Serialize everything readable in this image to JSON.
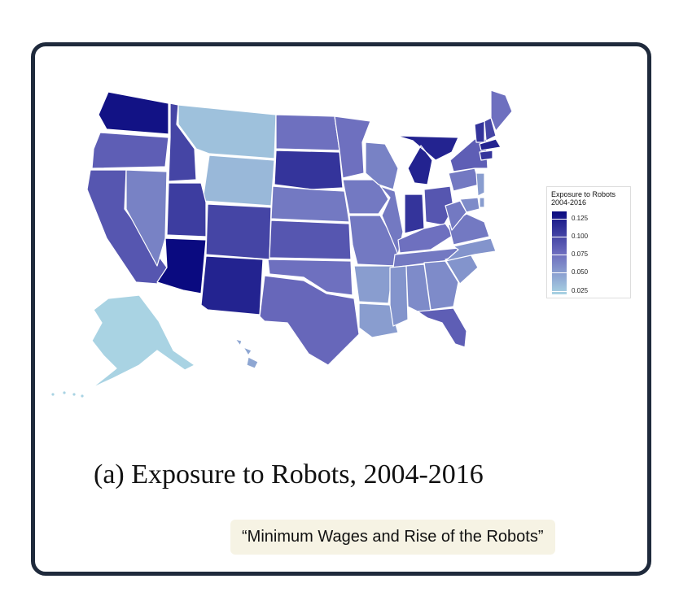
{
  "legend": {
    "title_line1": "Exposure to Robots",
    "title_line2": "2004-2016",
    "ticks": [
      "0.125",
      "0.100",
      "0.075",
      "0.050",
      "0.025"
    ],
    "scale_min": 0.02,
    "scale_max": 0.135,
    "color_low": "#a9d3e3",
    "color_mid": "#6b6bbd",
    "color_high": "#0a0a80"
  },
  "caption": "(a) Exposure to Robots, 2004-2016",
  "source_tag": "“Minimum Wages and Rise of the Robots”",
  "colors": {
    "frame": "#1f2a3c",
    "state_border": "#ffffff",
    "tag_background": "#f6f3e4"
  },
  "map_data": {
    "WA": 0.13,
    "OR": 0.085,
    "CA": 0.09,
    "ID": 0.1,
    "NV": 0.065,
    "MT": 0.03,
    "WY": 0.035,
    "UT": 0.105,
    "AZ": 0.14,
    "CO": 0.1,
    "NM": 0.12,
    "ND": 0.075,
    "SD": 0.11,
    "NE": 0.07,
    "KS": 0.09,
    "OK": 0.075,
    "TX": 0.08,
    "MN": 0.075,
    "IA": 0.07,
    "MO": 0.07,
    "AR": 0.05,
    "LA": 0.05,
    "WI": 0.065,
    "IL": 0.07,
    "MI": 0.12,
    "IN": 0.11,
    "OH": 0.09,
    "KY": 0.075,
    "TN": 0.07,
    "MS": 0.055,
    "AL": 0.06,
    "GA": 0.06,
    "FL": 0.085,
    "SC": 0.055,
    "NC": 0.055,
    "VA": 0.07,
    "WV": 0.07,
    "PA": 0.07,
    "NY": 0.085,
    "VT": 0.11,
    "NH": 0.1,
    "ME": 0.075,
    "MA": 0.12,
    "CT": 0.11,
    "NJ": 0.05,
    "MD": 0.06,
    "DE": 0.05,
    "AK": 0.02,
    "HI": 0.045
  }
}
